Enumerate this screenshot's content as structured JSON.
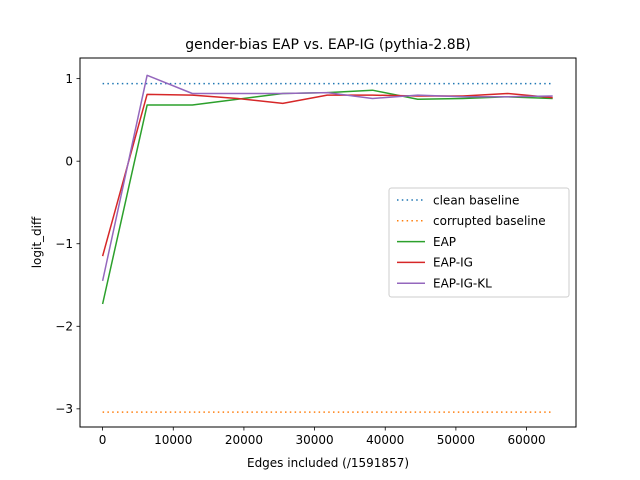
{
  "chart_data": {
    "type": "line",
    "title": "gender-bias EAP vs. EAP-IG (pythia-2.8B)",
    "xlabel": "Edges included (/1591857)",
    "ylabel": "logit_diff",
    "xlim": [
      -3200,
      67000
    ],
    "ylim": [
      -3.22,
      1.25
    ],
    "xticks": [
      0,
      10000,
      20000,
      30000,
      40000,
      50000,
      60000
    ],
    "yticks": [
      -3,
      -2,
      -1,
      0,
      1
    ],
    "grid": false,
    "legend_position": "center-right",
    "series": [
      {
        "name": "clean baseline",
        "style": "dotted",
        "color": "#1f77b4",
        "x": [
          0,
          63700
        ],
        "y": [
          0.94,
          0.94
        ]
      },
      {
        "name": "corrupted baseline",
        "style": "dotted",
        "color": "#ff7f0e",
        "x": [
          0,
          63700
        ],
        "y": [
          -3.04,
          -3.04
        ]
      },
      {
        "name": "EAP",
        "style": "solid",
        "color": "#2ca02c",
        "x": [
          0,
          6300,
          12700,
          19100,
          25500,
          31800,
          38200,
          44600,
          51000,
          57300,
          63700
        ],
        "y": [
          -1.73,
          0.68,
          0.68,
          0.75,
          0.82,
          0.83,
          0.86,
          0.75,
          0.76,
          0.78,
          0.76
        ]
      },
      {
        "name": "EAP-IG",
        "style": "solid",
        "color": "#d62728",
        "x": [
          0,
          6300,
          12700,
          19100,
          25500,
          31800,
          38200,
          44600,
          51000,
          57300,
          63700
        ],
        "y": [
          -1.15,
          0.81,
          0.8,
          0.76,
          0.7,
          0.8,
          0.8,
          0.79,
          0.79,
          0.82,
          0.77
        ]
      },
      {
        "name": "EAP-IG-KL",
        "style": "solid",
        "color": "#9467bd",
        "x": [
          0,
          6300,
          12700,
          19100,
          25500,
          31800,
          38200,
          44600,
          51000,
          57300,
          63700
        ],
        "y": [
          -1.45,
          1.04,
          0.82,
          0.82,
          0.82,
          0.83,
          0.76,
          0.8,
          0.78,
          0.78,
          0.79
        ]
      }
    ]
  }
}
